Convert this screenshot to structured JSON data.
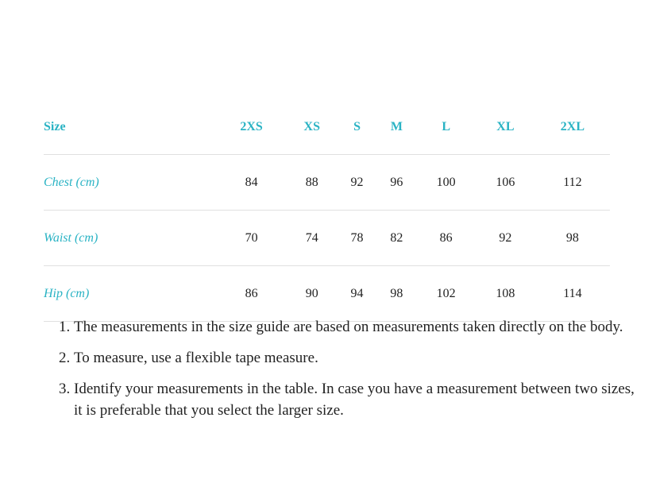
{
  "table": {
    "headers": [
      "Size",
      "2XS",
      "XS",
      "S",
      "M",
      "L",
      "XL",
      "2XL"
    ],
    "rows": [
      {
        "label": "Chest (cm)",
        "values": [
          "84",
          "88",
          "92",
          "96",
          "100",
          "106",
          "112"
        ]
      },
      {
        "label": "Waist (cm)",
        "values": [
          "70",
          "74",
          "78",
          "82",
          "86",
          "92",
          "98"
        ]
      },
      {
        "label": "Hip (cm)",
        "values": [
          "86",
          "90",
          "94",
          "98",
          "102",
          "108",
          "114"
        ]
      }
    ]
  },
  "notes": [
    "The measurements in the size guide are based on measurements taken directly on the body.",
    "To measure, use a flexible tape measure.",
    "Identify your measurements in the table. In case you have a measurement between two sizes, it is preferable that you select the larger size."
  ],
  "colors": {
    "accent": "#2ab3c4"
  }
}
